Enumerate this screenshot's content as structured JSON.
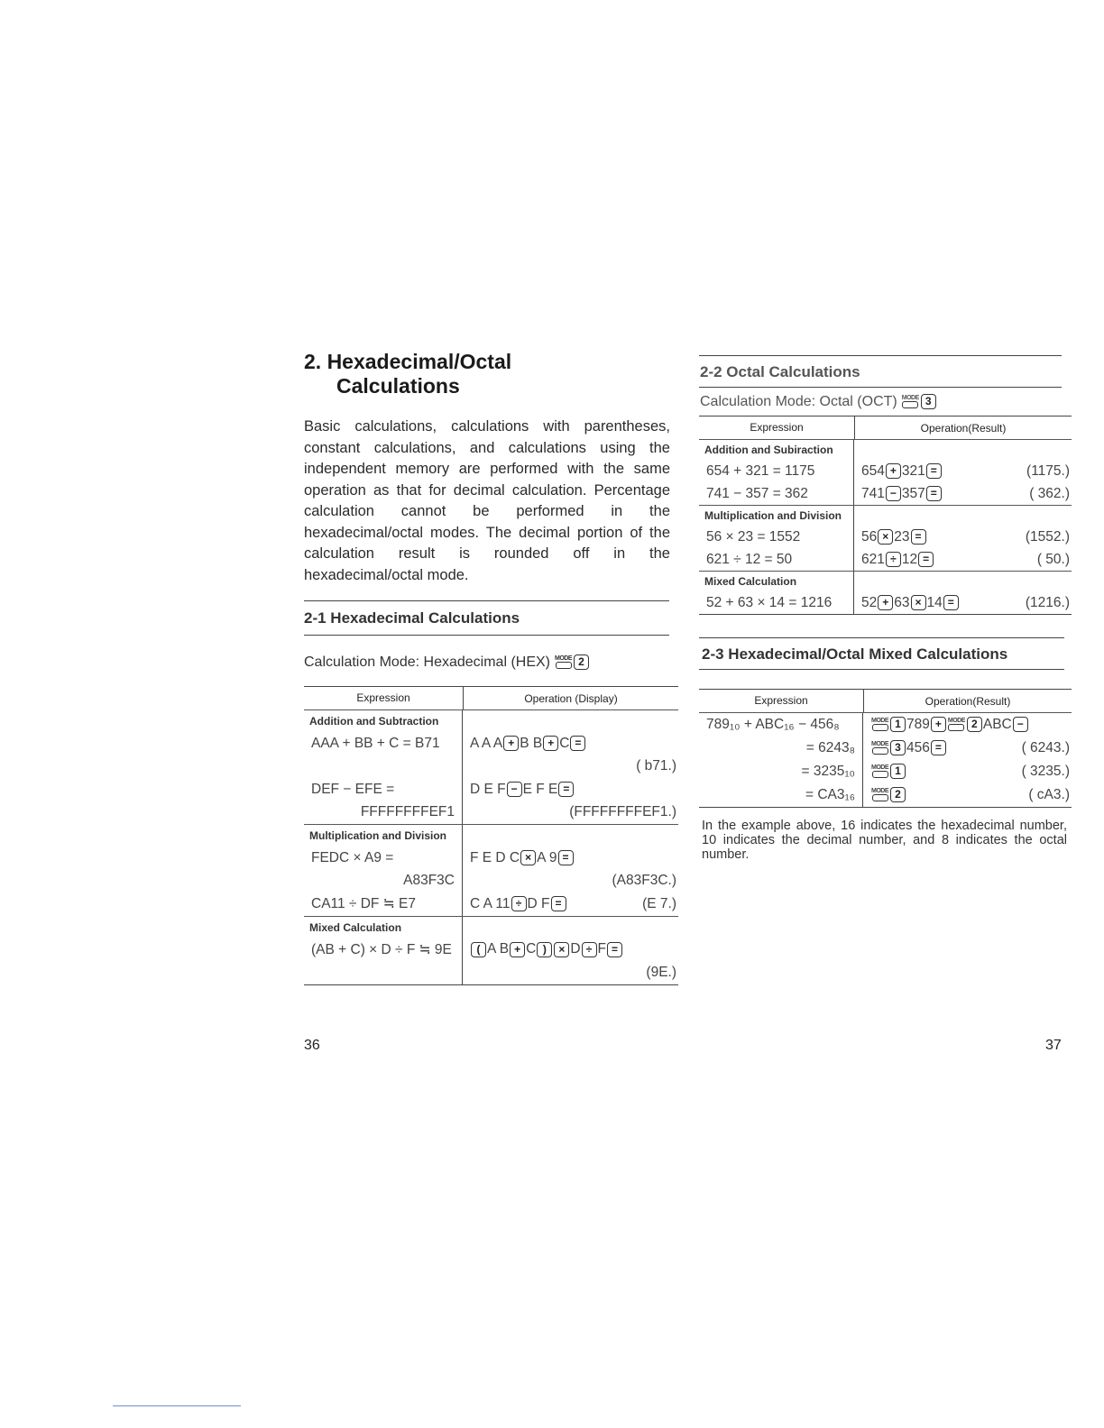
{
  "left_page": {
    "title_line1": "2.  Hexadecimal/Octal",
    "title_line2": "Calculations",
    "intro": "Basic calculations, calculations with parentheses, constant calculations, and calculations using the independent memory are performed with the same operation as that for decimal calculation. Percentage calculation cannot be performed in the hexadecimal/octal modes. The decimal portion of the calculation result is rounded off in the hexadecimal/octal mode.",
    "section_heading": "2-1 Hexadecimal Calculations",
    "calc_mode": "Calculation Mode: Hexadecimal (HEX)",
    "calc_mode_keys": [
      {
        "key": "MODE"
      },
      {
        "key": "2"
      }
    ],
    "table": {
      "headers": [
        "Expression",
        "Operation (Display)"
      ],
      "sections": [
        {
          "category": "Addition and Subtraction",
          "rows": [
            {
              "expr": "AAA + BB + C = B71",
              "op": [
                "A A A",
                {
                  "key": "+"
                },
                "B B",
                {
                  "key": "+"
                },
                "C",
                {
                  "key": "="
                }
              ],
              "result": ""
            },
            {
              "expr": "",
              "op": [],
              "result": "( b71.)"
            },
            {
              "expr": "DEF − EFE =",
              "op": [
                "D E F",
                {
                  "key": "−"
                },
                "E F E",
                {
                  "key": "="
                }
              ],
              "result": ""
            },
            {
              "expr": "FFFFFFFFEF1",
              "continuation": true,
              "op": [],
              "result": "(FFFFFFFFEF1.)"
            }
          ]
        },
        {
          "category": "Multiplication and Division",
          "rows": [
            {
              "expr": "FEDC × A9 =",
              "op": [
                "F E D C",
                {
                  "key": "×"
                },
                "A 9",
                {
                  "key": "="
                }
              ],
              "result": ""
            },
            {
              "expr": "A83F3C",
              "continuation": true,
              "op": [],
              "result": "(A83F3C.)"
            },
            {
              "expr": "CA11 ÷ DF ≒ E7",
              "op": [
                "C A 11",
                {
                  "key": "÷"
                },
                "D F",
                {
                  "key": "="
                }
              ],
              "result": "(E 7.)"
            }
          ]
        },
        {
          "category": "Mixed Calculation",
          "rows": [
            {
              "expr": "(AB + C) × D ÷ F ≒ 9E",
              "op": [
                {
                  "key": "("
                },
                "A B",
                {
                  "key": "+"
                },
                "C",
                {
                  "key": ")"
                },
                {
                  "key": "×"
                },
                "D",
                {
                  "key": "÷"
                },
                "F",
                {
                  "key": "="
                }
              ],
              "result": ""
            },
            {
              "expr": "",
              "op": [],
              "result": "(9E.)"
            }
          ]
        }
      ]
    },
    "page_number": "36"
  },
  "right_page": {
    "octal_heading": "2-2 Octal Calculations",
    "calc_mode": "Calculation Mode: Octal (OCT)",
    "calc_mode_keys": [
      {
        "key": "MODE"
      },
      {
        "key": "3"
      }
    ],
    "octal_table": {
      "headers": [
        "Expression",
        "Operation(Result)"
      ],
      "sections": [
        {
          "category": "Addition and Subiraction",
          "rows": [
            {
              "expr": "654 + 321 = 1175",
              "op": [
                "654",
                {
                  "key": "+"
                },
                "321",
                {
                  "key": "="
                }
              ],
              "result": "(1175.)"
            },
            {
              "expr": "741 − 357 = 362",
              "op": [
                "741",
                {
                  "key": "−"
                },
                "357",
                {
                  "key": "="
                }
              ],
              "result": "( 362.)"
            }
          ]
        },
        {
          "category": "Multiplication and Division",
          "rows": [
            {
              "expr": "56 × 23 = 1552",
              "op": [
                "56",
                {
                  "key": "×"
                },
                "23",
                {
                  "key": "="
                }
              ],
              "result": "(1552.)"
            },
            {
              "expr": "621 ÷ 12 = 50",
              "op": [
                "621",
                {
                  "key": "÷"
                },
                "12",
                {
                  "key": "="
                }
              ],
              "result": "(  50.)"
            }
          ]
        },
        {
          "category": "Mixed Calculation",
          "rows": [
            {
              "expr": "52 + 63 × 14 = 1216",
              "op": [
                "52",
                {
                  "key": "+"
                },
                "63",
                {
                  "key": "×"
                },
                "14",
                {
                  "key": "="
                }
              ],
              "result": "(1216.)"
            }
          ]
        }
      ]
    },
    "mixed_heading": "2-3 Hexadecimal/Octal Mixed Calculations",
    "mixed_table": {
      "headers": [
        "Expression",
        "Operation(Result)"
      ],
      "sections": [
        {
          "category": "",
          "rows": [
            {
              "expr": "789₁₀ + ABC₁₆ − 456₈",
              "op": [
                {
                  "key": "MODE"
                },
                {
                  "key": "1"
                },
                "789",
                {
                  "key": "+"
                },
                {
                  "key": "MODE"
                },
                {
                  "key": "2"
                },
                "ABC",
                {
                  "key": "−"
                }
              ],
              "result": ""
            },
            {
              "expr": "= 6243₈",
              "continuation": true,
              "op": [
                {
                  "key": "MODE"
                },
                {
                  "key": "3"
                },
                "456",
                {
                  "key": "="
                }
              ],
              "result": "( 6243.)"
            },
            {
              "expr": "= 3235₁₀",
              "continuation": true,
              "op": [
                {
                  "key": "MODE"
                },
                {
                  "key": "1"
                }
              ],
              "result": "( 3235.)"
            },
            {
              "expr": "= CA3₁₆",
              "continuation": true,
              "op": [
                {
                  "key": "MODE"
                },
                {
                  "key": "2"
                }
              ],
              "result": "( cA3.)"
            }
          ]
        }
      ]
    },
    "note": "In the example above, 16 indicates the hexadecimal number, 10 indicates the decimal number, and 8 indicates the octal number.",
    "page_number": "37"
  }
}
